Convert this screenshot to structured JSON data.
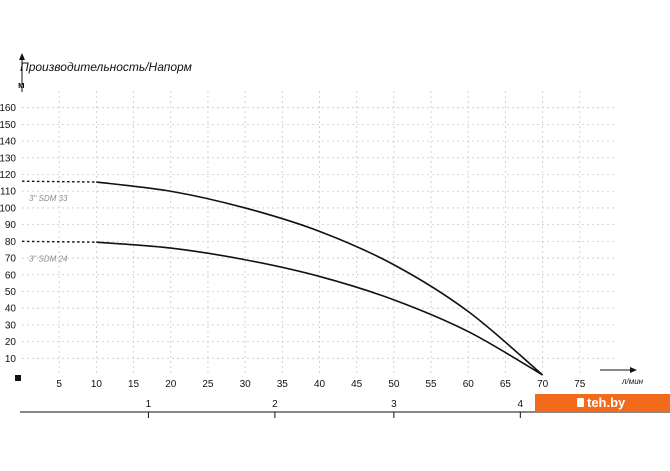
{
  "chart_data": {
    "type": "line",
    "title": "Производительность/Напорм",
    "ylabel": "м",
    "xlabel": "л/мин",
    "xlim": [
      0,
      80
    ],
    "ylim": [
      0,
      170
    ],
    "x_ticks": [
      5,
      10,
      15,
      20,
      25,
      30,
      35,
      40,
      45,
      50,
      55,
      60,
      65,
      70,
      75
    ],
    "y_ticks": [
      10,
      20,
      30,
      40,
      50,
      60,
      70,
      80,
      90,
      100,
      110,
      120,
      130,
      140,
      150,
      160
    ],
    "grid": true,
    "secondary_axis": {
      "ticks": [
        {
          "label": "1",
          "x": 17
        },
        {
          "label": "2",
          "x": 34
        },
        {
          "label": "3",
          "x": 50
        },
        {
          "label": "4",
          "x": 67
        }
      ]
    },
    "series": [
      {
        "name": "3\" SDM 33",
        "x": [
          0,
          10,
          20,
          30,
          40,
          50,
          60,
          70
        ],
        "y": [
          116,
          115.5,
          110,
          100,
          86,
          66,
          38,
          0
        ],
        "dashed_until_x": 10
      },
      {
        "name": "3\" SDM 24",
        "x": [
          0,
          10,
          20,
          30,
          40,
          50,
          60,
          70
        ],
        "y": [
          80,
          79.5,
          76,
          69,
          59,
          45,
          26,
          0
        ],
        "dashed_until_x": 10
      }
    ]
  },
  "watermark": {
    "text": "teh.by",
    "color": "#f26b1d"
  }
}
